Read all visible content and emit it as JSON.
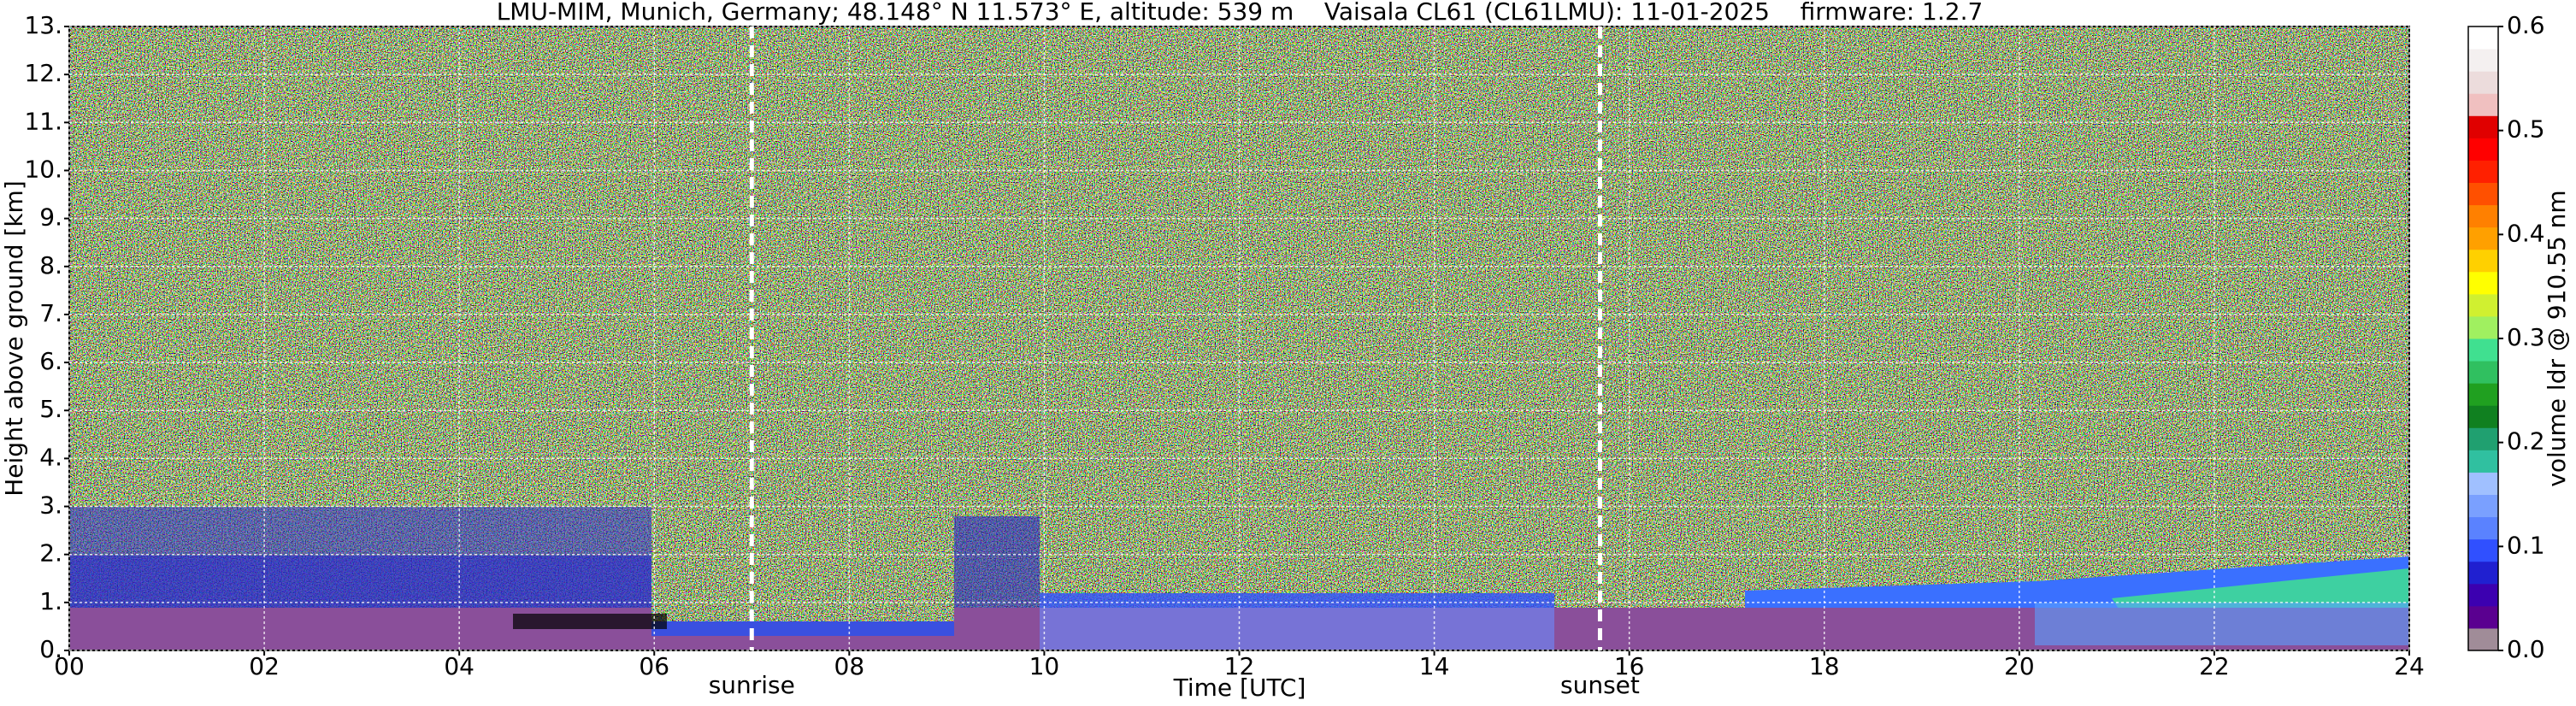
{
  "chart_data": {
    "type": "heatmap",
    "title": "LMU-MIM, Munich, Germany; 48.148° N 11.573° E, altitude: 539 m    Vaisala CL61 (CL61LMU): 11-01-2025    firmware: 1.2.7",
    "xlabel": "Time [UTC]",
    "ylabel": "Height above ground [km]",
    "xlim": [
      0,
      24
    ],
    "xticks": [
      {
        "value": 0,
        "label": "00"
      },
      {
        "value": 2,
        "label": "02"
      },
      {
        "value": 4,
        "label": "04"
      },
      {
        "value": 6,
        "label": "06"
      },
      {
        "value": 8,
        "label": "08"
      },
      10,
      12,
      14,
      16,
      18,
      20,
      22,
      24
    ],
    "ylim": [
      0,
      13
    ],
    "yticks": [
      {
        "value": 0,
        "label": "0."
      },
      {
        "value": 1,
        "label": "1."
      },
      {
        "value": 2,
        "label": "2."
      },
      {
        "value": 3,
        "label": "3."
      },
      {
        "value": 4,
        "label": "4."
      },
      {
        "value": 5,
        "label": "5."
      },
      {
        "value": 6,
        "label": "6."
      },
      {
        "value": 7,
        "label": "7."
      },
      {
        "value": 8,
        "label": "8."
      },
      {
        "value": 9,
        "label": "9."
      },
      {
        "value": 10,
        "label": "10."
      },
      {
        "value": 11,
        "label": "11."
      },
      {
        "value": 12,
        "label": "12."
      },
      {
        "value": 13,
        "label": "13."
      }
    ],
    "grid": true,
    "annotations": [
      {
        "text": "sunrise",
        "x": 7.0
      },
      {
        "text": "sunset",
        "x": 15.7
      }
    ],
    "colorbar": {
      "label": "volume ldr @ 910.55 nm",
      "clim": [
        0,
        0.6
      ],
      "ticks": [
        {
          "value": 0,
          "label": "0.0"
        },
        0.1,
        0.2,
        0.3,
        0.4,
        0.5,
        0.6
      ],
      "colormap": [
        "#a08c98",
        "#5a0090",
        "#3c00b0",
        "#2020d0",
        "#3050ff",
        "#5a82ff",
        "#7aa0ff",
        "#a0c0ff",
        "#30c0a0",
        "#20a070",
        "#108020",
        "#20a020",
        "#30c060",
        "#40e090",
        "#a0f060",
        "#d0f030",
        "#ffff00",
        "#ffd000",
        "#ffa000",
        "#ff8000",
        "#ff5000",
        "#ff2000",
        "#ff0000",
        "#e00000",
        "#f0c0c0",
        "#ecdcdc",
        "#f4f0f0",
        "#ffffff"
      ]
    }
  }
}
